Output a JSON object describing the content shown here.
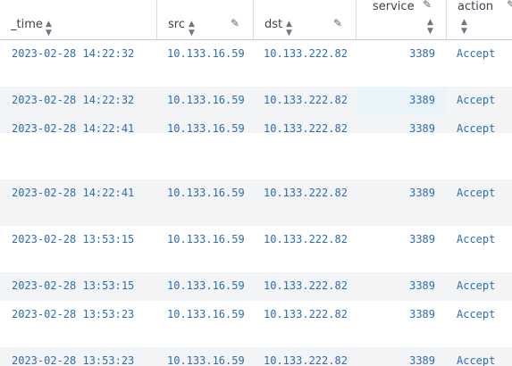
{
  "columns": {
    "time": "_time",
    "src": "src",
    "dst": "dst",
    "service": "service",
    "action": "action"
  },
  "icons": {
    "sort": "sort-icon",
    "edit": "pencil-icon"
  },
  "rows": [
    {
      "time": "2023-02-28 14:22:32",
      "src": "10.133.16.59",
      "dst": "10.133.222.82",
      "service": "3389",
      "action": "Accept"
    },
    {
      "time": "2023-02-28 14:22:32",
      "src": "10.133.16.59",
      "dst": "10.133.222.82",
      "service": "3389",
      "action": "Accept"
    },
    {
      "time": "2023-02-28 14:22:41",
      "src": "10.133.16.59",
      "dst": "10.133.222.82",
      "service": "3389",
      "action": "Accept"
    },
    {
      "time": "2023-02-28 14:22:41",
      "src": "10.133.16.59",
      "dst": "10.133.222.82",
      "service": "3389",
      "action": "Accept"
    },
    {
      "time": "2023-02-28 13:53:15",
      "src": "10.133.16.59",
      "dst": "10.133.222.82",
      "service": "3389",
      "action": "Accept"
    },
    {
      "time": "2023-02-28 13:53:15",
      "src": "10.133.16.59",
      "dst": "10.133.222.82",
      "service": "3389",
      "action": "Accept"
    },
    {
      "time": "2023-02-28 13:53:23",
      "src": "10.133.16.59",
      "dst": "10.133.222.82",
      "service": "3389",
      "action": "Accept"
    },
    {
      "time": "2023-02-28 13:53:23",
      "src": "10.133.16.59",
      "dst": "10.133.222.82",
      "service": "3389",
      "action": "Accept"
    }
  ],
  "colors": {
    "link": "#2f6db3",
    "row_alt": "#f2f4f5",
    "hover": "#e9f4fb"
  }
}
